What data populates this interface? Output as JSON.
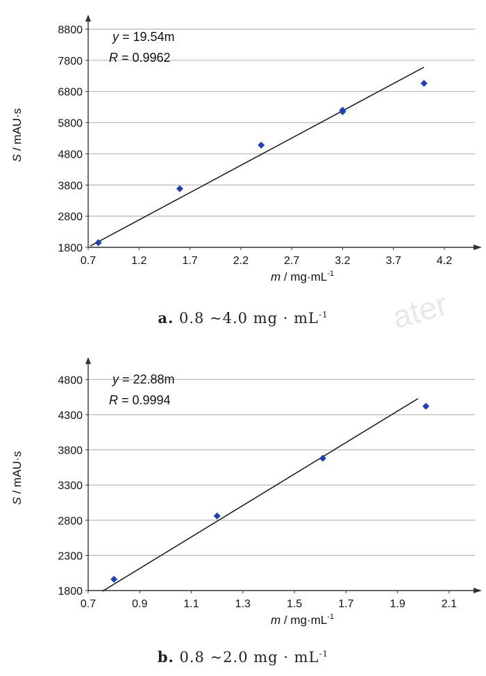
{
  "chart_data": [
    {
      "type": "scatter",
      "xlabel_italic": "m",
      "xlabel_unit": " / mg·mL",
      "xlabel_sup": "-1",
      "ylabel_italic": "S",
      "ylabel_unit": " / mAU·s",
      "xlim": [
        0.7,
        4.5
      ],
      "ylim": [
        1800,
        9000
      ],
      "xticks": [
        0.7,
        1.2,
        1.7,
        2.2,
        2.7,
        3.2,
        3.7,
        4.2
      ],
      "xtick_labels": [
        "0.7",
        "1.2",
        "1.7",
        "2.2",
        "2.7",
        "3.2",
        "3.7",
        "4.2"
      ],
      "yticks": [
        1800,
        2800,
        3800,
        4800,
        5800,
        6800,
        7800,
        8800
      ],
      "ytick_labels": [
        "1800",
        "2800",
        "3800",
        "4800",
        "5800",
        "6800",
        "7800",
        "8800"
      ],
      "grid": true,
      "series": [
        {
          "x": [
            0.8,
            1.6,
            2.4,
            3.2,
            3.2,
            4.0
          ],
          "y": [
            1950,
            3680,
            5080,
            6150,
            6200,
            7060
          ],
          "color": "#1f3fbf"
        }
      ],
      "fit_line": {
        "x": [
          0.72,
          4.0
        ],
        "y": [
          1840,
          7580
        ],
        "color": "#222222"
      },
      "equation_y": "y",
      "equation_rhs": " = 19.54m",
      "equation_R": "R",
      "equation_Rval": " = 0.9962",
      "caption_label": "a.",
      "caption_text": "0.8 ~4.0 mg · mL",
      "caption_sup": "-1"
    },
    {
      "type": "scatter",
      "xlabel_italic": "m",
      "xlabel_unit": " / mg·mL",
      "xlabel_sup": "-1",
      "ylabel_italic": "S",
      "ylabel_unit": " / mAU·s",
      "xlim": [
        0.7,
        2.2
      ],
      "ylim": [
        1800,
        5000
      ],
      "xticks": [
        0.7,
        0.9,
        1.1,
        1.3,
        1.5,
        1.7,
        1.9,
        2.1
      ],
      "xtick_labels": [
        "0.7",
        "0.9",
        "1.1",
        "1.3",
        "1.5",
        "1.7",
        "1.9",
        "2.1"
      ],
      "yticks": [
        1800,
        2300,
        2800,
        3300,
        3800,
        4300,
        4800
      ],
      "ytick_labels": [
        "1800",
        "2300",
        "2800",
        "3300",
        "3800",
        "4300",
        "4800"
      ],
      "grid": true,
      "series": [
        {
          "x": [
            0.8,
            1.2,
            1.61,
            2.01
          ],
          "y": [
            1960,
            2860,
            3680,
            4420
          ],
          "color": "#1f3fbf"
        }
      ],
      "fit_line": {
        "x": [
          0.755,
          1.98
        ],
        "y": [
          1790,
          4530
        ],
        "color": "#222222"
      },
      "equation_y": "y",
      "equation_rhs": " = 22.88m",
      "equation_R": "R",
      "equation_Rval": " = 0.9994",
      "caption_label": "b.",
      "caption_text": "0.8 ~2.0 mg · mL",
      "caption_sup": "-1"
    }
  ],
  "watermark": "ater"
}
